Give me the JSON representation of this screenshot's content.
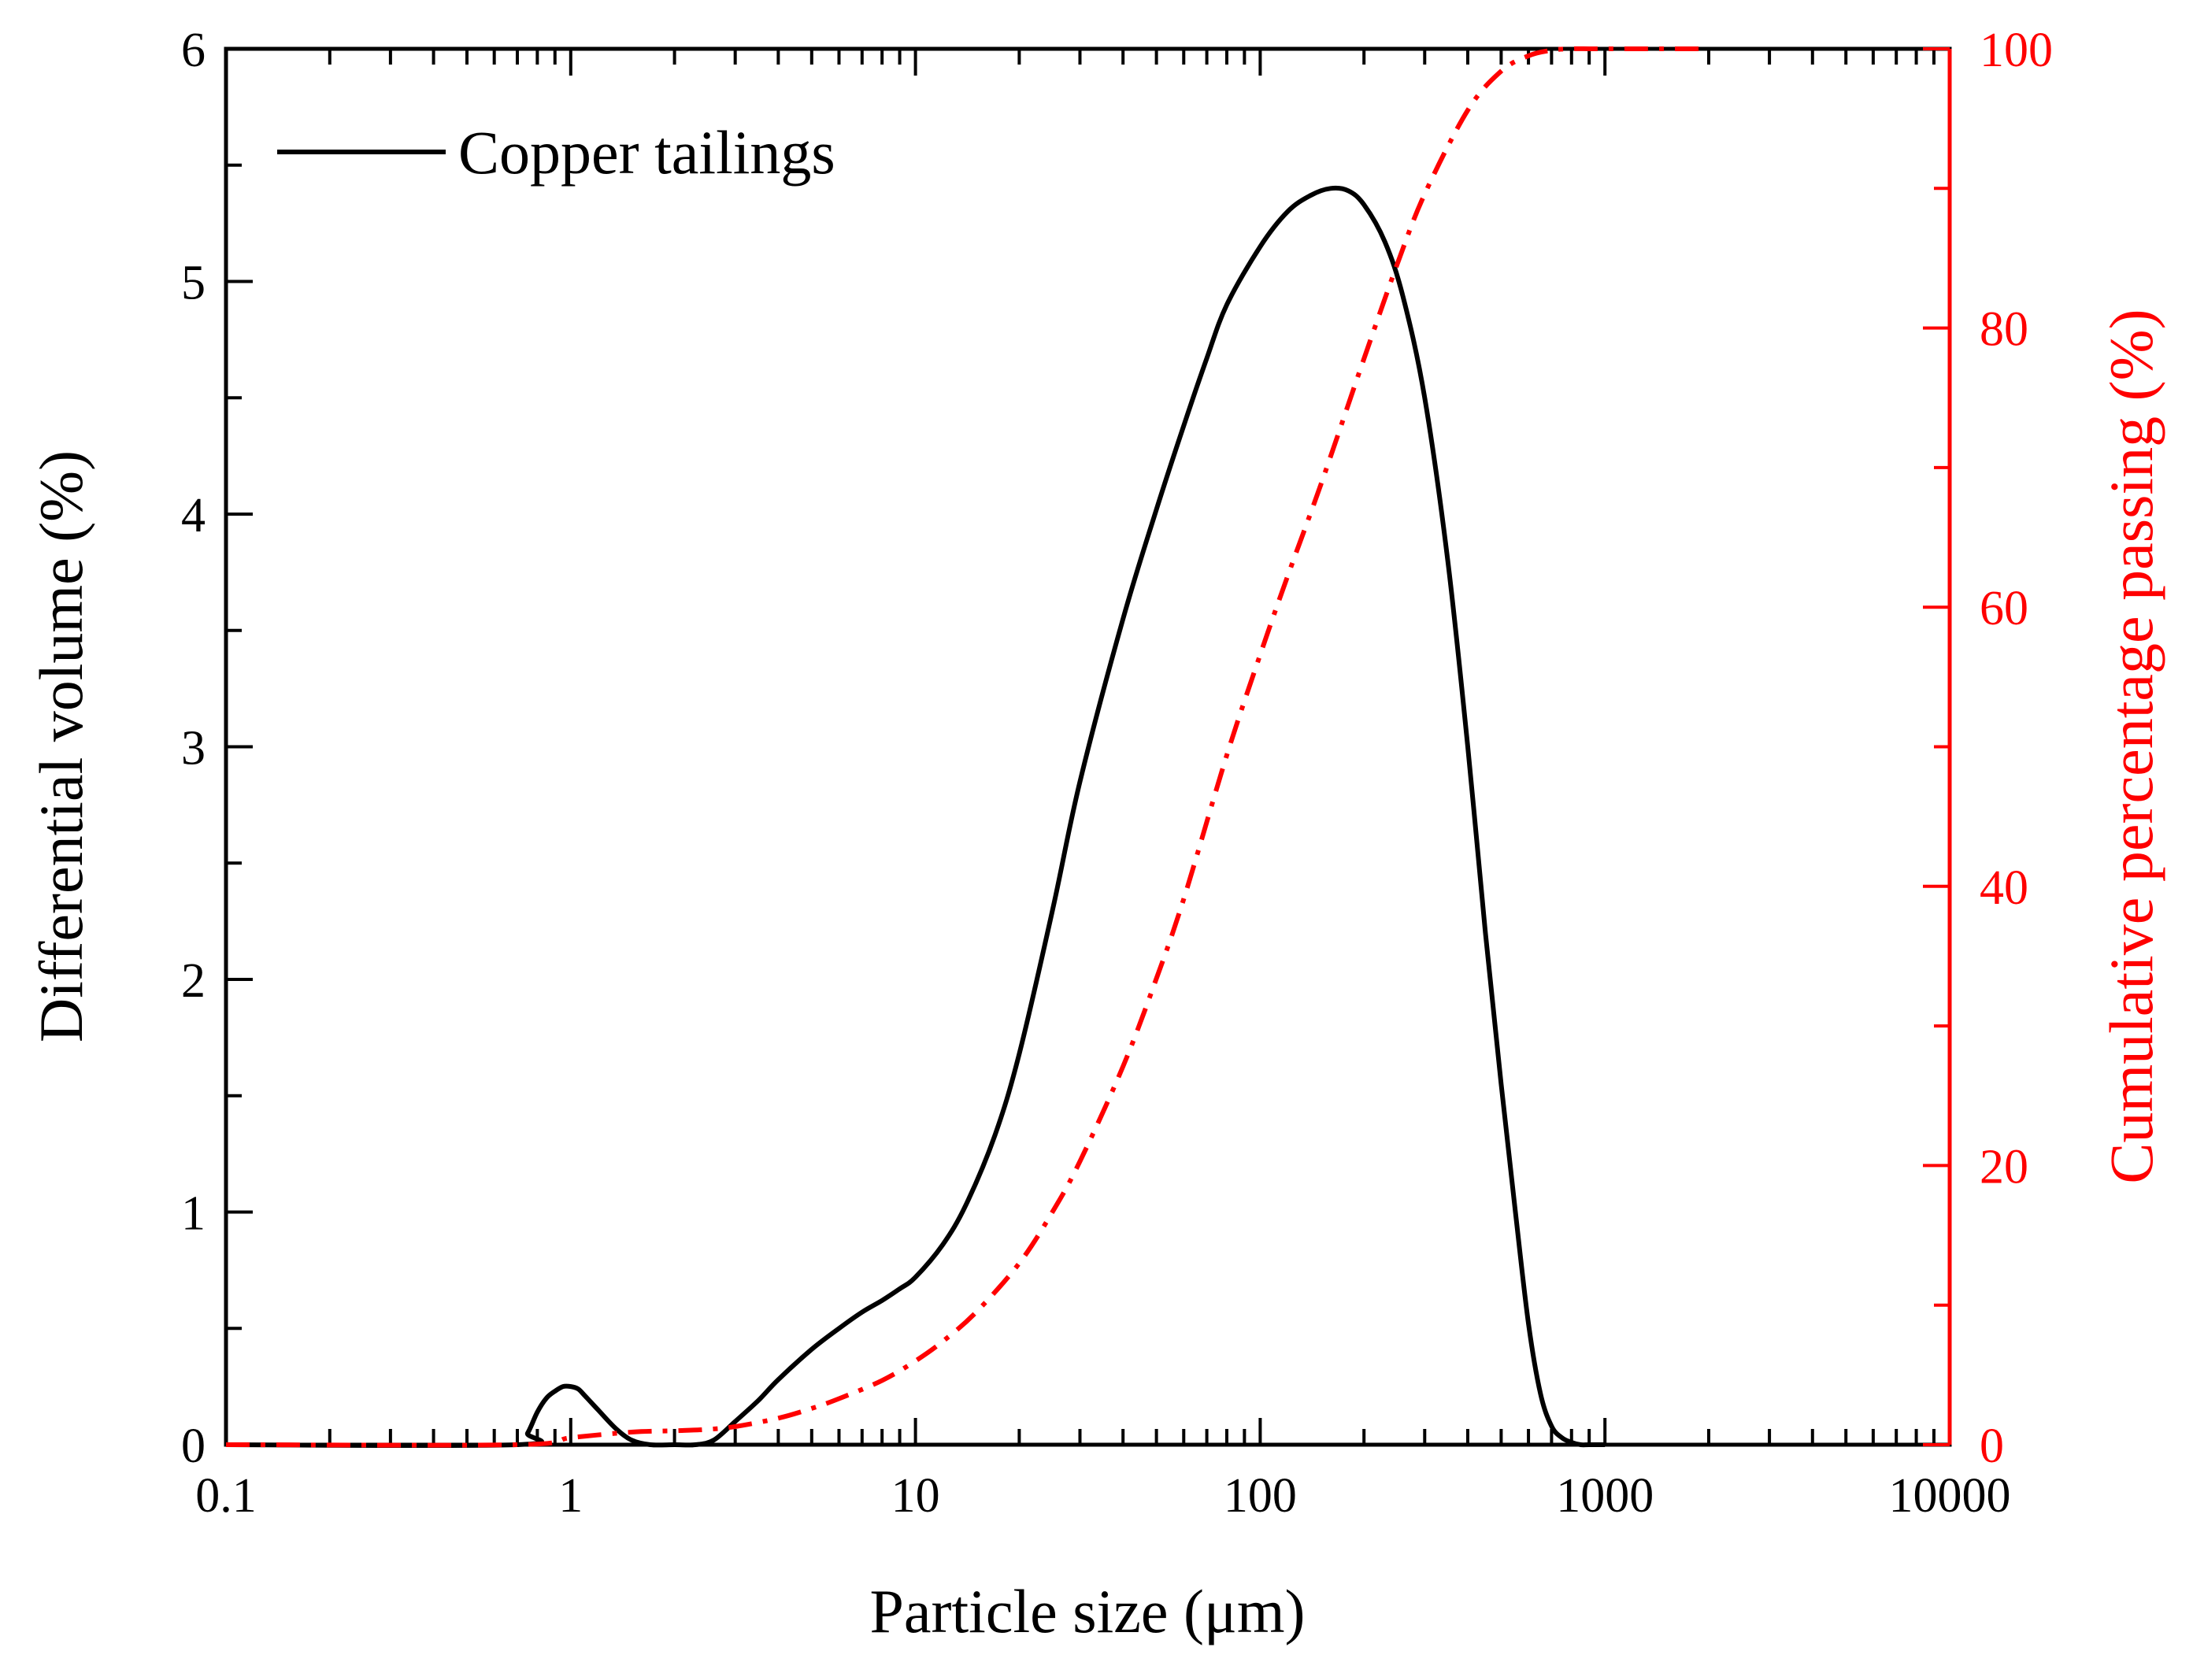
{
  "chart_data": {
    "type": "line",
    "title": "",
    "xlabel": "Particle size (μm)",
    "ylabel_left": "Differential volume (%)",
    "ylabel_right": "Cumulative percentage passing (%)",
    "x_scale": "log",
    "xlim": [
      0.1,
      10000
    ],
    "ylim_left": [
      0,
      6
    ],
    "ylim_right": [
      0,
      100
    ],
    "x_ticks": [
      "0.1",
      "1",
      "10",
      "100",
      "1000",
      "10000"
    ],
    "y_left_ticks": [
      "0",
      "1",
      "2",
      "3",
      "4",
      "5",
      "6"
    ],
    "y_right_ticks": [
      "0",
      "20",
      "40",
      "60",
      "80",
      "100"
    ],
    "legend": {
      "position": "top-left",
      "entries": [
        "Copper tailings"
      ]
    },
    "colors": {
      "differential": "#000000",
      "cumulative": "#ff0000",
      "right_axis": "#ff0000"
    },
    "series": [
      {
        "name": "Copper tailings",
        "axis": "left",
        "style": "solid",
        "color": "#000000",
        "x": [
          0.1,
          0.7,
          0.75,
          0.8,
          0.85,
          0.9,
          0.95,
          1.0,
          1.05,
          1.1,
          1.2,
          1.35,
          1.5,
          1.7,
          2.0,
          2.3,
          2.6,
          3.0,
          3.5,
          4.0,
          5.0,
          6.0,
          7.0,
          8.0,
          9.0,
          10,
          12,
          14,
          17,
          20,
          25,
          30,
          40,
          50,
          60,
          70,
          80,
          100,
          120,
          140,
          160,
          180,
          200,
          230,
          260,
          300,
          350,
          400,
          450,
          500,
          550,
          600,
          650,
          700,
          750,
          800,
          850,
          900,
          1000
        ],
        "y": [
          0,
          0,
          0.05,
          0.14,
          0.2,
          0.23,
          0.25,
          0.25,
          0.24,
          0.21,
          0.15,
          0.07,
          0.02,
          0,
          0,
          0,
          0.02,
          0.1,
          0.19,
          0.28,
          0.41,
          0.5,
          0.57,
          0.62,
          0.67,
          0.72,
          0.86,
          1.03,
          1.33,
          1.68,
          2.3,
          2.85,
          3.55,
          4.02,
          4.38,
          4.67,
          4.9,
          5.15,
          5.3,
          5.37,
          5.4,
          5.39,
          5.33,
          5.17,
          4.93,
          4.5,
          3.8,
          3.0,
          2.2,
          1.55,
          1.0,
          0.52,
          0.22,
          0.08,
          0.03,
          0.01,
          0,
          0,
          0
        ]
      },
      {
        "name": "Cumulative percentage passing",
        "axis": "right",
        "style": "dash-dot",
        "color": "#ff0000",
        "x": [
          0.1,
          0.7,
          1.0,
          1.5,
          2.0,
          2.5,
          3.0,
          4.0,
          5.0,
          6.0,
          8.0,
          10,
          12,
          15,
          20,
          25,
          30,
          40,
          50,
          60,
          80,
          100,
          120,
          150,
          200,
          250,
          300,
          400,
          500,
          600,
          700,
          800,
          900,
          1000,
          2000
        ],
        "y": [
          0,
          0,
          0.5,
          0.9,
          1.0,
          1.1,
          1.3,
          1.9,
          2.6,
          3.3,
          4.6,
          6.0,
          7.4,
          9.5,
          13.0,
          16.7,
          20.3,
          27.1,
          33.4,
          39.1,
          49.4,
          56.6,
          62.2,
          68.8,
          77.8,
          84.6,
          89.6,
          95.6,
          98.4,
          99.5,
          99.9,
          100,
          100,
          100,
          100
        ]
      }
    ]
  }
}
